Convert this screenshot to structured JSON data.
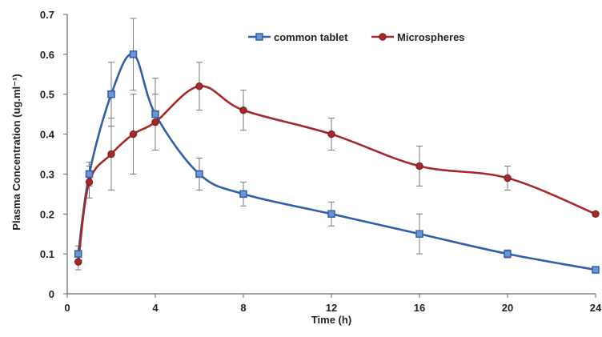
{
  "chart_data": {
    "type": "line",
    "title": "",
    "xlabel": "Time (h)",
    "ylabel": "Plasma Concentration (ug.ml⁻¹)",
    "xlim": [
      0,
      24
    ],
    "ylim": [
      0,
      0.7
    ],
    "x_ticks": [
      "0",
      "4",
      "8",
      "12",
      "16",
      "20",
      "24"
    ],
    "y_ticks": [
      "0",
      "0.1",
      "0.2",
      "0.3",
      "0.4",
      "0.5",
      "0.6",
      "0.7"
    ],
    "grid": false,
    "legend_position": "top-right",
    "series": [
      {
        "name": "common tablet",
        "color": "#2f5fa8",
        "marker": "square",
        "points": [
          {
            "x": 0.5,
            "y": 0.1,
            "err": 0.02
          },
          {
            "x": 1,
            "y": 0.3,
            "err": 0.03
          },
          {
            "x": 2,
            "y": 0.5,
            "err": 0.08
          },
          {
            "x": 3,
            "y": 0.6,
            "err": 0.09
          },
          {
            "x": 4,
            "y": 0.45,
            "err": 0.09
          },
          {
            "x": 6,
            "y": 0.3,
            "err": 0.04
          },
          {
            "x": 8,
            "y": 0.25,
            "err": 0.03
          },
          {
            "x": 12,
            "y": 0.2,
            "err": 0.03
          },
          {
            "x": 16,
            "y": 0.15,
            "err": 0.05
          },
          {
            "x": 20,
            "y": 0.1,
            "err": 0.01
          },
          {
            "x": 24,
            "y": 0.06,
            "err": 0.005
          }
        ]
      },
      {
        "name": "Microspheres",
        "color": "#a5282a",
        "marker": "circle",
        "points": [
          {
            "x": 0.5,
            "y": 0.08,
            "err": 0.02
          },
          {
            "x": 1,
            "y": 0.28,
            "err": 0.04
          },
          {
            "x": 2,
            "y": 0.35,
            "err": 0.09
          },
          {
            "x": 3,
            "y": 0.4,
            "err": 0.1
          },
          {
            "x": 4,
            "y": 0.43,
            "err": 0.07
          },
          {
            "x": 6,
            "y": 0.52,
            "err": 0.06
          },
          {
            "x": 8,
            "y": 0.46,
            "err": 0.05
          },
          {
            "x": 12,
            "y": 0.4,
            "err": 0.04
          },
          {
            "x": 16,
            "y": 0.32,
            "err": 0.05
          },
          {
            "x": 20,
            "y": 0.29,
            "err": 0.03
          },
          {
            "x": 24,
            "y": 0.2,
            "err": 0.005
          }
        ]
      }
    ]
  }
}
